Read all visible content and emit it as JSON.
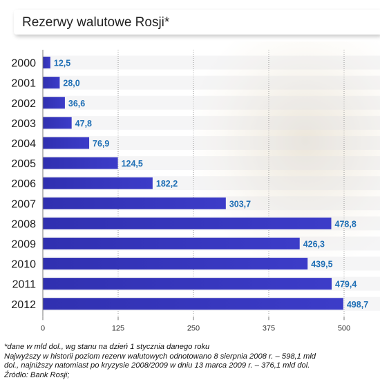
{
  "title": "Rezerwy walutowe Rosji*",
  "chart_data": {
    "type": "bar",
    "orientation": "horizontal",
    "categories": [
      "2000",
      "2001",
      "2002",
      "2003",
      "2004",
      "2005",
      "2006",
      "2007",
      "2008",
      "2009",
      "2010",
      "2011",
      "2012"
    ],
    "values": [
      12.5,
      28.0,
      36.6,
      47.8,
      76.9,
      124.5,
      182.2,
      303.7,
      478.8,
      426.3,
      439.5,
      479.4,
      498.7
    ],
    "value_labels": [
      "12,5",
      "28,0",
      "36,6",
      "47,8",
      "76,9",
      "124,5",
      "182,2",
      "303,7",
      "478,8",
      "426,3",
      "439,5",
      "479,4",
      "498,7"
    ],
    "xticks": [
      0,
      125,
      250,
      375,
      500
    ],
    "xlim": [
      0,
      500
    ],
    "grid": true,
    "bar_color": "#3232b4",
    "label_color": "#1f6fb5"
  },
  "footnotes": [
    "*dane w mld dol., wg stanu na dzień 1 stycznia danego roku",
    "Najwyższy w historii poziom rezerw walutowych odnotowano 8 sierpnia 2008 r. – 598,1 mld",
    "dol., najniższy natomiast po kryzysie 2008/2009 w dniu 13 marca 2009 r. – 376,1 mld dol.",
    "Źródło: Bank Rosji;"
  ]
}
